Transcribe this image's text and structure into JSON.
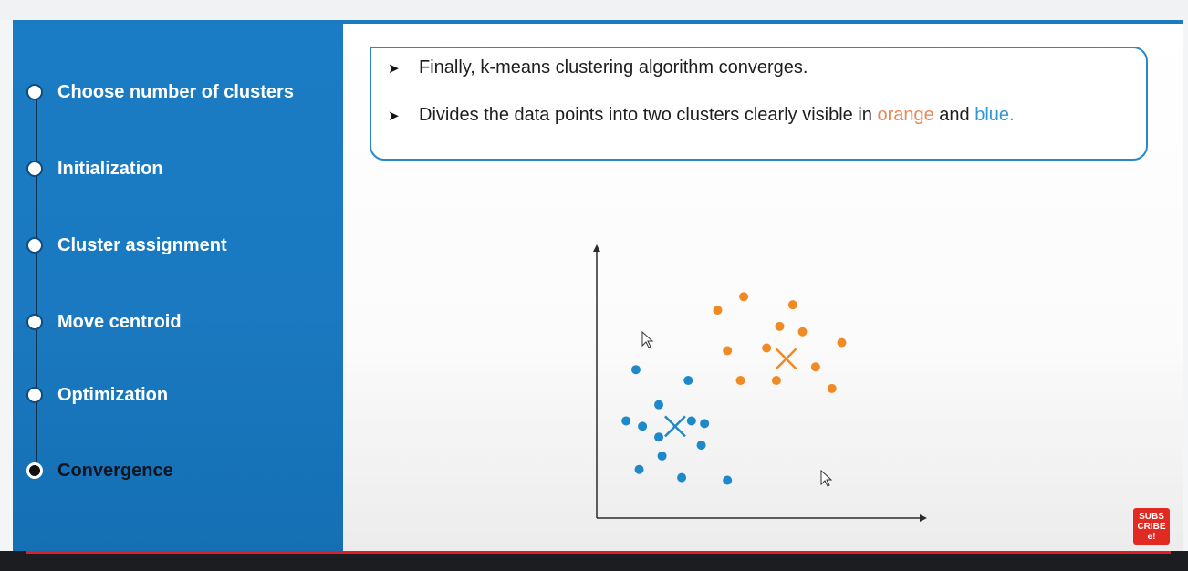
{
  "sidebar": {
    "steps": [
      {
        "label": "Choose number of clusters"
      },
      {
        "label": "Initialization"
      },
      {
        "label": "Cluster assignment"
      },
      {
        "label": "Move centroid"
      },
      {
        "label": "Optimization"
      },
      {
        "label": "Convergence",
        "active": true
      }
    ]
  },
  "callout": {
    "bullet1": "Finally, k-means clustering algorithm converges.",
    "bullet2_prefix": "Divides the data points into two clusters clearly visible in ",
    "bullet2_orange": "orange",
    "bullet2_middle": " and ",
    "bullet2_blue": "blue."
  },
  "subscribe": {
    "line1": "SUBS",
    "line2": "CRIBE",
    "line3": "e!"
  },
  "colors": {
    "orange": "#f08a24",
    "blue": "#1f88c8",
    "sidebar": "#1a7ac2",
    "accent_red": "#e11e26"
  },
  "chart_data": {
    "type": "scatter",
    "title": "",
    "xlabel": "",
    "ylabel": "",
    "xlim": [
      0,
      100
    ],
    "ylim": [
      0,
      100
    ],
    "grid": false,
    "series": [
      {
        "color": "#f08a24",
        "points": [
          [
            45,
            82
          ],
          [
            37,
            77
          ],
          [
            60,
            79
          ],
          [
            56,
            71
          ],
          [
            63,
            69
          ],
          [
            75,
            65
          ],
          [
            40,
            62
          ],
          [
            52,
            63
          ],
          [
            67,
            56
          ],
          [
            44,
            51
          ],
          [
            55,
            51
          ],
          [
            72,
            48
          ]
        ],
        "centroid": [
          58,
          59
        ]
      },
      {
        "color": "#1f88c8",
        "points": [
          [
            12,
            55
          ],
          [
            28,
            51
          ],
          [
            19,
            42
          ],
          [
            9,
            36
          ],
          [
            29,
            36
          ],
          [
            33,
            35
          ],
          [
            14,
            34
          ],
          [
            19,
            30
          ],
          [
            32,
            27
          ],
          [
            20,
            23
          ],
          [
            13,
            18
          ],
          [
            26,
            15
          ],
          [
            40,
            14
          ]
        ],
        "centroid": [
          24,
          34
        ]
      }
    ]
  }
}
